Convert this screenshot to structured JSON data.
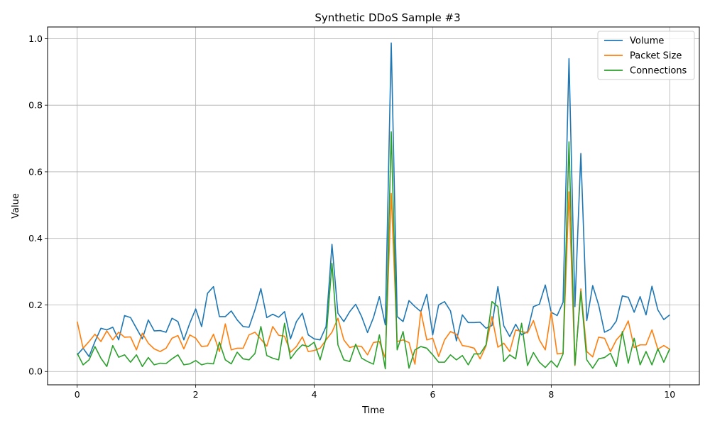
{
  "chart_data": {
    "type": "line",
    "title": "Synthetic DDoS Sample #3",
    "xlabel": "Time",
    "ylabel": "Value",
    "xlim": [
      -0.5,
      10.5
    ],
    "ylim": [
      -0.04,
      1.035
    ],
    "xticks": [
      0,
      2,
      4,
      6,
      8,
      10
    ],
    "yticks": [
      0.0,
      0.2,
      0.4,
      0.6,
      0.8,
      1.0
    ],
    "xtick_labels": [
      "0",
      "2",
      "4",
      "6",
      "8",
      "10"
    ],
    "ytick_labels": [
      "0.0",
      "0.2",
      "0.4",
      "0.6",
      "0.8",
      "1.0"
    ],
    "grid": true,
    "legend_position": "top-right",
    "x": [
      0.0,
      0.1,
      0.2,
      0.3,
      0.4,
      0.5,
      0.6,
      0.7,
      0.8,
      0.9,
      1.0,
      1.1,
      1.2,
      1.3,
      1.4,
      1.5,
      1.6,
      1.7,
      1.8,
      1.9,
      2.0,
      2.1,
      2.2,
      2.3,
      2.4,
      2.5,
      2.6,
      2.7,
      2.8,
      2.9,
      3.0,
      3.1,
      3.2,
      3.3,
      3.4,
      3.5,
      3.6,
      3.7,
      3.8,
      3.9,
      4.0,
      4.1,
      4.2,
      4.3,
      4.4,
      4.5,
      4.6,
      4.7,
      4.8,
      4.9,
      5.0,
      5.1,
      5.2,
      5.3,
      5.4,
      5.5,
      5.6,
      5.7,
      5.8,
      5.9,
      6.0,
      6.1,
      6.2,
      6.3,
      6.4,
      6.5,
      6.6,
      6.7,
      6.8,
      6.9,
      7.0,
      7.1,
      7.2,
      7.3,
      7.4,
      7.5,
      7.6,
      7.7,
      7.8,
      7.9,
      8.0,
      8.1,
      8.2,
      8.3,
      8.4,
      8.5,
      8.6,
      8.7,
      8.8,
      8.9,
      9.0,
      9.1,
      9.2,
      9.3,
      9.4,
      9.5,
      9.6,
      9.7,
      9.8,
      9.9,
      10.0
    ],
    "series": [
      {
        "name": "Volume",
        "color": "#1f77b4",
        "values": [
          0.05,
          0.07,
          0.045,
          0.09,
          0.13,
          0.125,
          0.133,
          0.095,
          0.168,
          0.162,
          0.13,
          0.098,
          0.155,
          0.122,
          0.123,
          0.118,
          0.16,
          0.15,
          0.095,
          0.145,
          0.188,
          0.135,
          0.235,
          0.255,
          0.165,
          0.165,
          0.182,
          0.155,
          0.135,
          0.133,
          0.185,
          0.249,
          0.162,
          0.172,
          0.163,
          0.18,
          0.098,
          0.15,
          0.175,
          0.11,
          0.098,
          0.095,
          0.135,
          0.382,
          0.175,
          0.15,
          0.18,
          0.202,
          0.165,
          0.117,
          0.162,
          0.225,
          0.14,
          0.987,
          0.165,
          0.15,
          0.213,
          0.195,
          0.18,
          0.232,
          0.11,
          0.2,
          0.21,
          0.182,
          0.092,
          0.17,
          0.147,
          0.147,
          0.148,
          0.13,
          0.138,
          0.255,
          0.137,
          0.105,
          0.142,
          0.11,
          0.12,
          0.195,
          0.202,
          0.26,
          0.178,
          0.168,
          0.208,
          0.94,
          0.195,
          0.655,
          0.153,
          0.258,
          0.2,
          0.118,
          0.127,
          0.152,
          0.227,
          0.223,
          0.178,
          0.225,
          0.17,
          0.256,
          0.185,
          0.156,
          0.17
        ]
      },
      {
        "name": "Packet Size",
        "color": "#ff7f0e",
        "values": [
          0.15,
          0.07,
          0.09,
          0.112,
          0.09,
          0.122,
          0.095,
          0.118,
          0.103,
          0.104,
          0.065,
          0.115,
          0.085,
          0.068,
          0.06,
          0.07,
          0.1,
          0.108,
          0.068,
          0.11,
          0.1,
          0.075,
          0.077,
          0.112,
          0.06,
          0.143,
          0.065,
          0.07,
          0.07,
          0.11,
          0.118,
          0.097,
          0.076,
          0.135,
          0.109,
          0.106,
          0.058,
          0.075,
          0.104,
          0.06,
          0.063,
          0.07,
          0.095,
          0.118,
          0.16,
          0.095,
          0.072,
          0.077,
          0.075,
          0.05,
          0.087,
          0.09,
          0.04,
          0.535,
          0.09,
          0.095,
          0.087,
          0.022,
          0.18,
          0.095,
          0.1,
          0.045,
          0.095,
          0.12,
          0.112,
          0.078,
          0.075,
          0.07,
          0.038,
          0.077,
          0.165,
          0.073,
          0.085,
          0.06,
          0.125,
          0.12,
          0.116,
          0.153,
          0.095,
          0.065,
          0.18,
          0.053,
          0.055,
          0.54,
          0.018,
          0.248,
          0.06,
          0.044,
          0.103,
          0.1,
          0.06,
          0.095,
          0.115,
          0.152,
          0.072,
          0.08,
          0.08,
          0.125,
          0.067,
          0.078,
          0.067
        ]
      },
      {
        "name": "Connections",
        "color": "#2ca02c",
        "values": [
          0.055,
          0.02,
          0.035,
          0.075,
          0.04,
          0.015,
          0.078,
          0.043,
          0.05,
          0.028,
          0.05,
          0.015,
          0.042,
          0.02,
          0.025,
          0.024,
          0.038,
          0.05,
          0.02,
          0.023,
          0.033,
          0.02,
          0.025,
          0.023,
          0.088,
          0.035,
          0.023,
          0.058,
          0.038,
          0.035,
          0.054,
          0.135,
          0.048,
          0.04,
          0.035,
          0.145,
          0.038,
          0.062,
          0.08,
          0.075,
          0.088,
          0.035,
          0.1,
          0.325,
          0.08,
          0.035,
          0.03,
          0.082,
          0.04,
          0.03,
          0.022,
          0.11,
          0.008,
          0.72,
          0.065,
          0.12,
          0.01,
          0.065,
          0.075,
          0.07,
          0.05,
          0.028,
          0.028,
          0.05,
          0.035,
          0.048,
          0.02,
          0.053,
          0.053,
          0.08,
          0.21,
          0.195,
          0.03,
          0.05,
          0.038,
          0.145,
          0.018,
          0.057,
          0.028,
          0.012,
          0.032,
          0.013,
          0.053,
          0.69,
          0.02,
          0.24,
          0.035,
          0.01,
          0.038,
          0.042,
          0.055,
          0.015,
          0.12,
          0.025,
          0.1,
          0.02,
          0.06,
          0.02,
          0.068,
          0.028,
          0.068
        ]
      }
    ]
  }
}
